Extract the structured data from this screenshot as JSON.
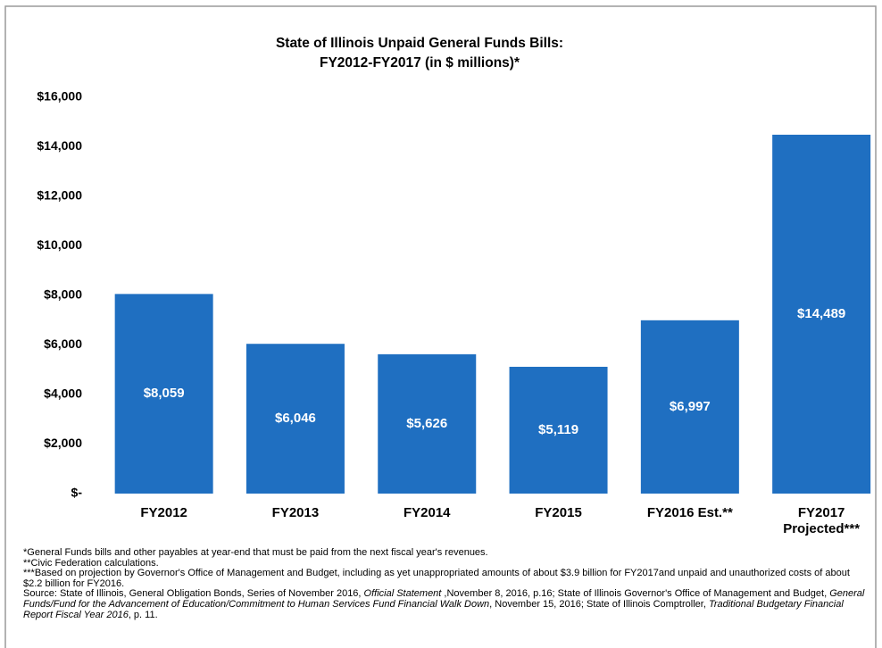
{
  "chart_data": {
    "type": "bar",
    "title": [
      "State of Illinois Unpaid General Funds Bills:",
      "FY2012-FY2017 (in $ millions)*"
    ],
    "categories": [
      "FY2012",
      "FY2013",
      "FY2014",
      "FY2015",
      "FY2016 Est.**",
      "FY2017 Projected***"
    ],
    "values": [
      8059,
      6046,
      5626,
      5119,
      6997,
      14489
    ],
    "value_labels": [
      "$8,059",
      "$6,046",
      "$5,626",
      "$5,119",
      "$6,997",
      "$14,489"
    ],
    "color": "#1f6fc1",
    "ylim": [
      0,
      16000
    ],
    "yticks": [
      {
        "value": 0,
        "label": "$-"
      },
      {
        "value": 2000,
        "label": "$2,000"
      },
      {
        "value": 4000,
        "label": "$4,000"
      },
      {
        "value": 6000,
        "label": "$6,000"
      },
      {
        "value": 8000,
        "label": "$8,000"
      },
      {
        "value": 10000,
        "label": "$10,000"
      },
      {
        "value": 12000,
        "label": "$12,000"
      },
      {
        "value": 14000,
        "label": "$14,000"
      },
      {
        "value": 16000,
        "label": "$16,000"
      }
    ],
    "grid": false,
    "notes": [
      [
        {
          "text": "*General Funds bills and other payables at year-end  that must be paid from the next fiscal year's revenues.",
          "italic": false
        }
      ],
      [
        {
          "text": "**Civic Federation calculations.",
          "italic": false
        }
      ],
      [
        {
          "text": "***Based on projection by Governor's Office of Management and Budget, including as yet unappropriated amounts of about $3.9 billion for FY2017and unpaid and unauthorized costs of about $2.2 billion for FY2016.",
          "italic": false
        }
      ],
      [
        {
          "text": "Source: State of Illinois, General Obligation Bonds, Series of November 2016, ",
          "italic": false
        },
        {
          "text": "Official Statement",
          "italic": true
        },
        {
          "text": " ,November 8, 2016, p.16; State of Illinois Governor's Office of Management and Budget, ",
          "italic": false
        },
        {
          "text": "General Funds/Fund for the Advancement of Education/Commitment to Human Services Fund Financial Walk Down",
          "italic": true
        },
        {
          "text": ", November 15, 2016; State of Illinois Comptroller, ",
          "italic": false
        },
        {
          "text": "Traditional Budgetary Financial Report Fiscal Year 2016",
          "italic": true
        },
        {
          "text": ", p. 11.",
          "italic": false
        }
      ]
    ]
  }
}
